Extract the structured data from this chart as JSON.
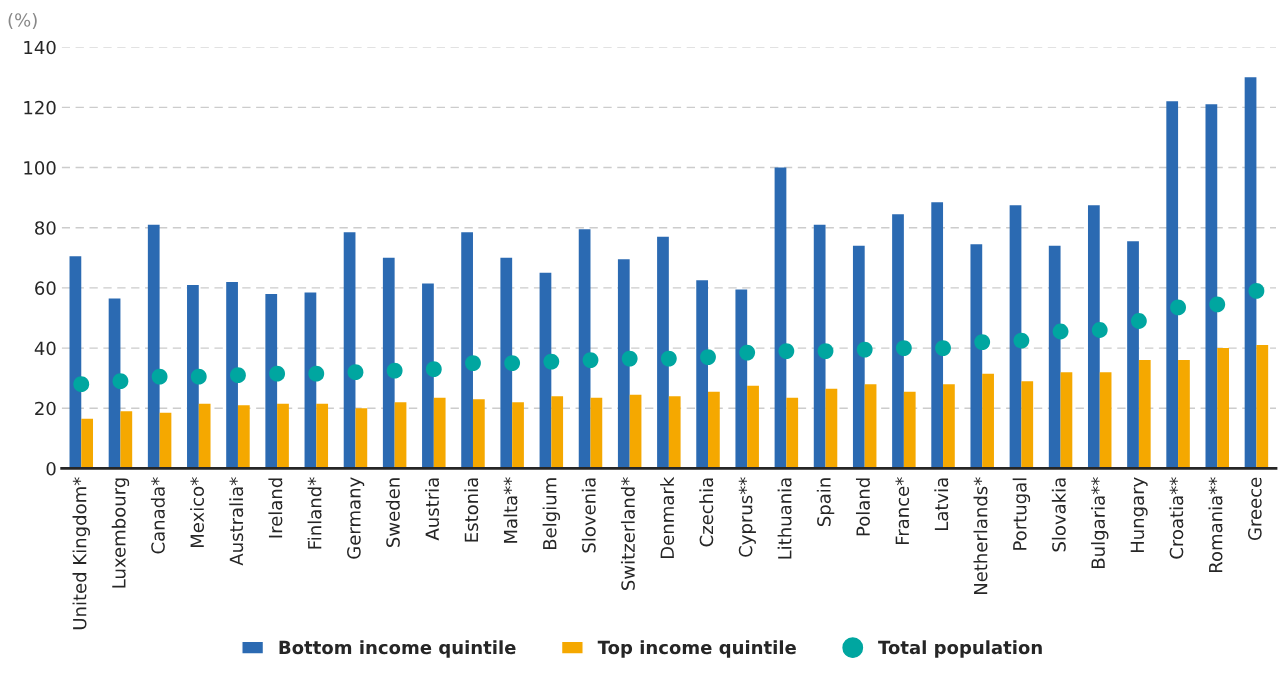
{
  "chart_data": {
    "type": "bar",
    "ylabel": "(%)",
    "categories": [
      "United Kingdom*",
      "Luxembourg",
      "Canada*",
      "Mexico*",
      "Australia*",
      "Ireland",
      "Finland*",
      "Germany",
      "Sweden",
      "Austria",
      "Estonia",
      "Malta**",
      "Belgium",
      "Slovenia",
      "Switzerland*",
      "Denmark",
      "Czechia",
      "Cyprus**",
      "Lithuania",
      "Spain",
      "Poland",
      "France*",
      "Latvia",
      "Netherlands*",
      "Portugal",
      "Slovakia",
      "Bulgaria**",
      "Hungary",
      "Croatia**",
      "Romania**",
      "Greece"
    ],
    "series": [
      {
        "name": "Bottom income quintile",
        "color": "#2b6ab2",
        "values": [
          70.5,
          56.5,
          81,
          61,
          62,
          58,
          58.5,
          78.5,
          70,
          61.5,
          78.5,
          70,
          65,
          79.5,
          69.5,
          77,
          62.5,
          59.5,
          100,
          81,
          74,
          84.5,
          88.5,
          74.5,
          87.5,
          74,
          87.5,
          75.5,
          122,
          121,
          130
        ]
      },
      {
        "name": "Top income quintile",
        "color": "#f5a800",
        "values": [
          16.5,
          19,
          18.5,
          21.5,
          21,
          21.5,
          21.5,
          20,
          22,
          23.5,
          23,
          22,
          24,
          23.5,
          24.5,
          24,
          25.5,
          27.5,
          23.5,
          26.5,
          28,
          25.5,
          28,
          31.5,
          29,
          32,
          32,
          36,
          36,
          40,
          41
        ]
      },
      {
        "name": "Total population",
        "type": "scatter",
        "color": "#00a6a0",
        "values": [
          28,
          29,
          30.5,
          30.5,
          31,
          31.5,
          31.5,
          32,
          32.5,
          33,
          35,
          35,
          35.5,
          36,
          36.5,
          36.5,
          37,
          38.5,
          39,
          39,
          39.5,
          40,
          40,
          42,
          42.5,
          45.5,
          46,
          49,
          53.5,
          54.5,
          59
        ]
      }
    ],
    "ylim": [
      0,
      140
    ],
    "yticks": [
      0,
      20,
      40,
      60,
      80,
      100,
      120,
      140
    ],
    "grid": "y",
    "legend": "bottom",
    "marker": "circle"
  }
}
